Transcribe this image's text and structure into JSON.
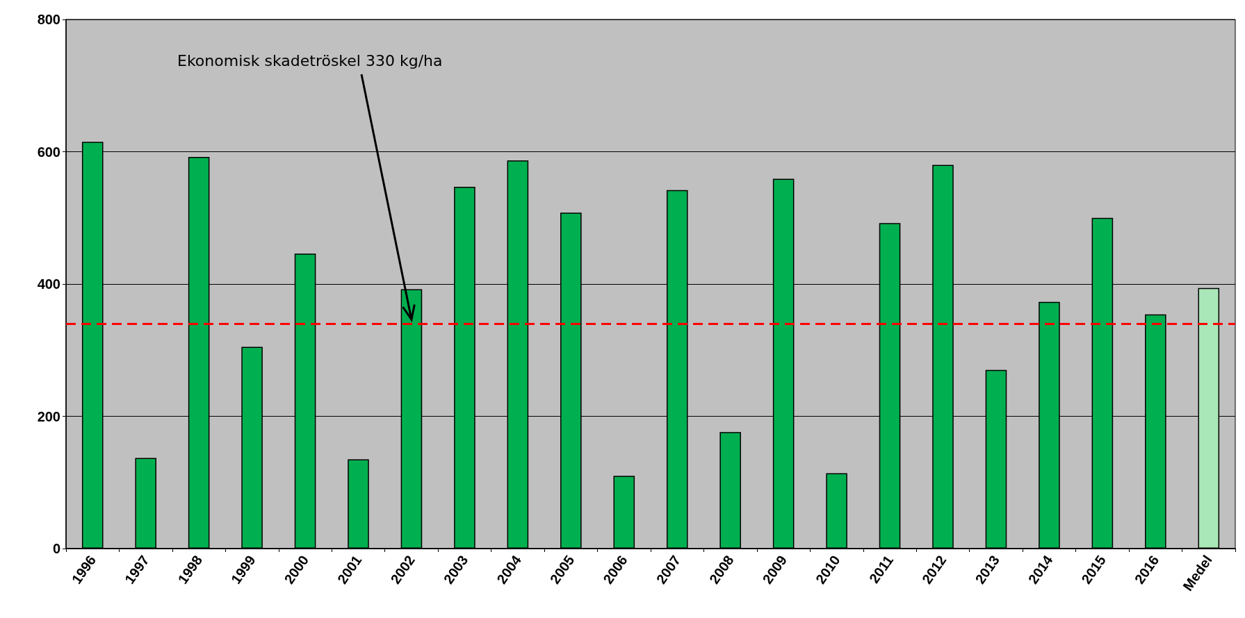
{
  "chart_data": {
    "type": "bar",
    "categories": [
      "1996",
      "1997",
      "1998",
      "1999",
      "2000",
      "2001",
      "2002",
      "2003",
      "2004",
      "2005",
      "2006",
      "2007",
      "2008",
      "2009",
      "2010",
      "2011",
      "2012",
      "2013",
      "2014",
      "2015",
      "2016",
      "Medel"
    ],
    "values": [
      615,
      137,
      592,
      305,
      446,
      135,
      392,
      547,
      587,
      508,
      110,
      542,
      176,
      559,
      114,
      492,
      580,
      270,
      373,
      500,
      354,
      394
    ],
    "colors": [
      "#00b050",
      "#00b050",
      "#00b050",
      "#00b050",
      "#00b050",
      "#00b050",
      "#00b050",
      "#00b050",
      "#00b050",
      "#00b050",
      "#00b050",
      "#00b050",
      "#00b050",
      "#00b050",
      "#00b050",
      "#00b050",
      "#00b050",
      "#00b050",
      "#00b050",
      "#00b050",
      "#00b050",
      "#a9e6b8"
    ],
    "ylim": [
      0,
      800
    ],
    "yticks": [
      0,
      200,
      400,
      600,
      800
    ],
    "grid": "y",
    "ref_lines": [
      {
        "axis": "y",
        "value": 340,
        "label": null,
        "color": "#ff0000",
        "line_style": "dashed"
      }
    ],
    "annotations": [
      "Ekonomisk skadetröskel 330 kg/ha"
    ]
  }
}
